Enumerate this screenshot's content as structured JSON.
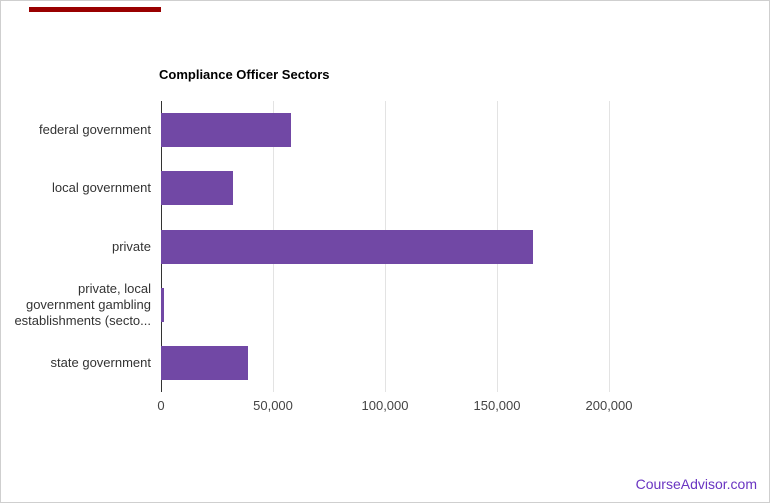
{
  "footer": {
    "brand": "CourseAdvisor.com",
    "brand_color": "#6a35c2"
  },
  "decorations": {
    "progress_bar_color": "#990000"
  },
  "chart_data": {
    "type": "bar",
    "orientation": "horizontal",
    "title": "Compliance Officer Sectors",
    "categories": [
      "federal government",
      "local government",
      "private",
      "private, local\ngovernment gambling\nestablishments (secto...",
      "state government"
    ],
    "values": [
      58000,
      32000,
      166000,
      1500,
      39000
    ],
    "xlabel": "",
    "ylabel": "",
    "xlim": [
      0,
      250000
    ],
    "x_ticks": [
      0,
      50000,
      100000,
      150000,
      200000
    ],
    "x_tick_labels": [
      "0",
      "50,000",
      "100,000",
      "150,000",
      "200,000"
    ],
    "bar_color": "#7148a5",
    "gridline_color": "#e3e3e3",
    "axis_color": "#333333",
    "legend": "none",
    "grid": true
  }
}
